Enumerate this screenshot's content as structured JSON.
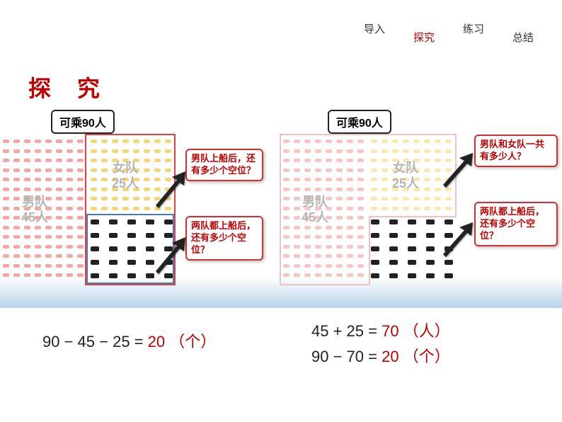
{
  "nav": {
    "items": [
      "导入",
      "探究",
      "练习",
      "总结"
    ],
    "active_index": 1,
    "active_color": "#c00000",
    "text_color": "#333333"
  },
  "title": {
    "text": "探 究",
    "color": "#c00000",
    "fontsize": 32
  },
  "capacity": {
    "label": "可乘90人",
    "value": 90
  },
  "teams": {
    "male": {
      "label": "男队",
      "count_label": "45人",
      "count": 45,
      "color": "#f4a6a6"
    },
    "female": {
      "label": "女队",
      "count_label": "25人",
      "count": 25,
      "color": "#f4d775"
    },
    "empty_color": "#222222"
  },
  "callouts": {
    "left_top": "男队上船后，还有多少个空位？",
    "left_bottom": "两队都上船后，还有多少个空位？",
    "right_top": "男队和女队一共有多少人？",
    "right_bottom": "两队都上船后，还有多少个空位？"
  },
  "equations": {
    "left": {
      "expr": "90 − 45 − 25 =",
      "result": "20",
      "unit": "（个）"
    },
    "right": [
      {
        "expr": "45 + 25 =",
        "result": "70",
        "unit": "（人）"
      },
      {
        "expr": "90 − 70 =",
        "result": "20",
        "unit": "（个）"
      }
    ]
  },
  "styling": {
    "frame_red": "#e04040",
    "frame_blue": "#4a7ab8",
    "frame_pink_light": "#f6c0c0",
    "callout_border": "#d03030",
    "callout_text": "#c00000",
    "team_label_color": "#b5b5b5",
    "gradient_bottom": "#b8d4ea",
    "background": "#ffffff"
  },
  "grid": {
    "left_male": {
      "rows": 9,
      "cols": 8,
      "dot_color": "pink"
    },
    "left_female": {
      "rows": 5,
      "cols": 8,
      "dot_color": "yellow"
    },
    "left_empty": {
      "rows": 4,
      "cols": 8,
      "dot_color": "black"
    },
    "right_male": {
      "rows": 9,
      "cols": 8,
      "dot_color": "pink-light"
    },
    "right_female": {
      "rows": 5,
      "cols": 8,
      "dot_color": "yellow-light"
    },
    "right_empty": {
      "rows": 4,
      "cols": 8,
      "dot_color": "black"
    }
  }
}
